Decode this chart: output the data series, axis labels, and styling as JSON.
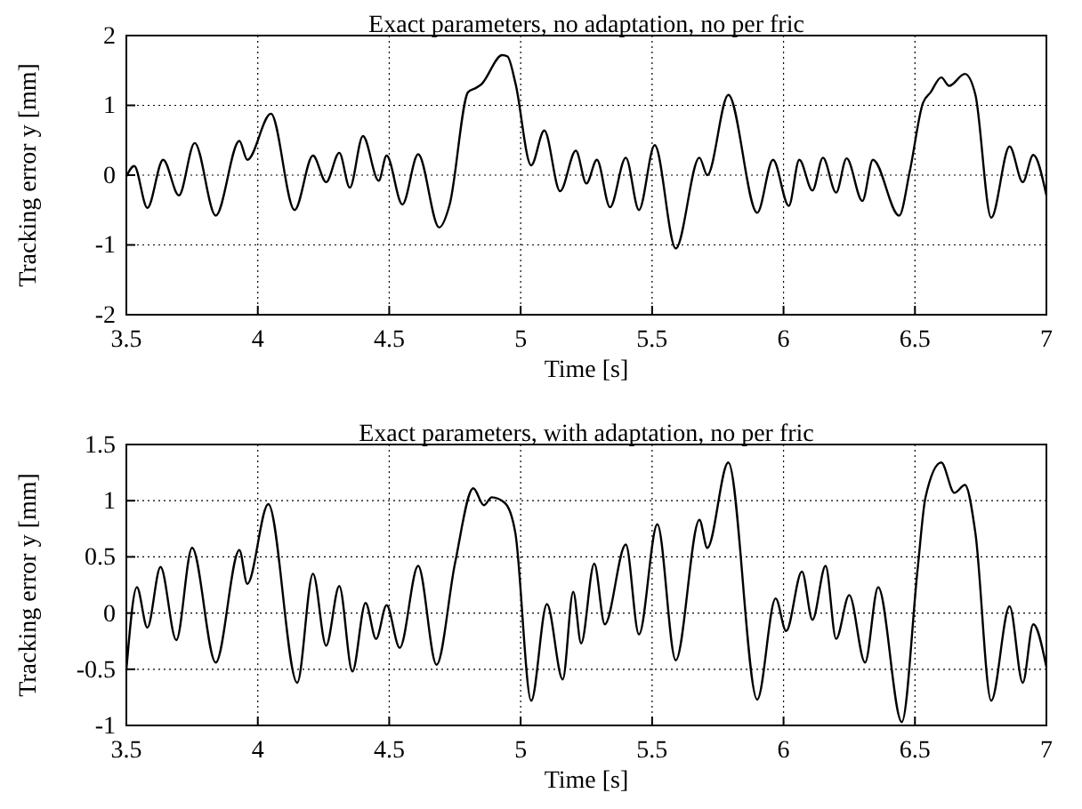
{
  "chart_data": [
    {
      "type": "line",
      "title": "Exact parameters, no adaptation, no per fric",
      "xlabel": "Time [s]",
      "ylabel": "Tracking error y [mm]",
      "xlim": [
        3.5,
        7
      ],
      "xticks": [
        3.5,
        4,
        4.5,
        5,
        5.5,
        6,
        6.5,
        7
      ],
      "ylim": [
        -2,
        2
      ],
      "yticks": [
        -2,
        -1,
        0,
        1,
        2
      ],
      "grid": true,
      "series": [
        {
          "color": "#000000",
          "x": [
            3.5,
            3.53,
            3.58,
            3.64,
            3.7,
            3.76,
            3.84,
            3.93,
            3.96,
            4.05,
            4.14,
            4.21,
            4.26,
            4.31,
            4.35,
            4.4,
            4.46,
            4.49,
            4.55,
            4.61,
            4.69,
            4.73,
            4.8,
            4.83,
            4.85,
            4.93,
            4.95,
            4.98,
            5.04,
            5.09,
            5.15,
            5.21,
            5.25,
            5.29,
            5.34,
            5.4,
            5.45,
            5.51,
            5.59,
            5.68,
            5.71,
            5.79,
            5.9,
            5.96,
            6.02,
            6.06,
            6.11,
            6.15,
            6.2,
            6.24,
            6.3,
            6.34,
            6.44,
            6.48,
            6.53,
            6.56,
            6.6,
            6.63,
            6.69,
            6.73,
            6.79,
            6.86,
            6.91,
            6.95,
            7.0
          ],
          "values": [
            -0.02,
            0.13,
            -0.47,
            0.22,
            -0.29,
            0.46,
            -0.58,
            0.49,
            0.22,
            0.88,
            -0.5,
            0.28,
            -0.1,
            0.32,
            -0.18,
            0.56,
            -0.08,
            0.28,
            -0.42,
            0.3,
            -0.75,
            -0.42,
            1.19,
            1.25,
            1.3,
            1.72,
            1.7,
            1.32,
            0.14,
            0.64,
            -0.23,
            0.35,
            -0.12,
            0.22,
            -0.46,
            0.25,
            -0.5,
            0.43,
            -1.05,
            0.25,
            0.0,
            1.15,
            -0.54,
            0.22,
            -0.44,
            0.22,
            -0.22,
            0.25,
            -0.25,
            0.24,
            -0.37,
            0.22,
            -0.58,
            0.05,
            1.03,
            1.19,
            1.4,
            1.28,
            1.45,
            1.15,
            -0.61,
            0.41,
            -0.1,
            0.29,
            -0.29
          ]
        }
      ]
    },
    {
      "type": "line",
      "title": "Exact parameters, with adaptation, no per fric",
      "xlabel": "Time [s]",
      "ylabel": "Tracking error y [mm]",
      "xlim": [
        3.5,
        7
      ],
      "xticks": [
        3.5,
        4,
        4.5,
        5,
        5.5,
        6,
        6.5,
        7
      ],
      "ylim": [
        -1,
        1.5
      ],
      "yticks": [
        -1,
        -0.5,
        0,
        0.5,
        1,
        1.5
      ],
      "grid": true,
      "series": [
        {
          "color": "#000000",
          "x": [
            3.5,
            3.54,
            3.58,
            3.63,
            3.69,
            3.75,
            3.84,
            3.93,
            3.96,
            4.04,
            4.15,
            4.21,
            4.26,
            4.31,
            4.36,
            4.41,
            4.45,
            4.49,
            4.54,
            4.61,
            4.68,
            4.75,
            4.82,
            4.86,
            4.89,
            4.94,
            4.98,
            5.04,
            5.1,
            5.16,
            5.2,
            5.23,
            5.28,
            5.32,
            5.4,
            5.45,
            5.52,
            5.59,
            5.68,
            5.71,
            5.79,
            5.9,
            5.97,
            6.01,
            6.07,
            6.11,
            6.16,
            6.2,
            6.25,
            6.31,
            6.36,
            6.45,
            6.51,
            6.54,
            6.6,
            6.65,
            6.69,
            6.73,
            6.79,
            6.86,
            6.91,
            6.95,
            7.0
          ],
          "values": [
            -0.51,
            0.23,
            -0.13,
            0.41,
            -0.24,
            0.58,
            -0.44,
            0.56,
            0.26,
            0.97,
            -0.62,
            0.35,
            -0.29,
            0.24,
            -0.52,
            0.09,
            -0.23,
            0.07,
            -0.31,
            0.42,
            -0.46,
            0.44,
            1.11,
            0.96,
            1.03,
            0.98,
            0.71,
            -0.78,
            0.08,
            -0.59,
            0.19,
            -0.27,
            0.44,
            -0.1,
            0.61,
            -0.19,
            0.79,
            -0.42,
            0.83,
            0.58,
            1.34,
            -0.77,
            0.13,
            -0.16,
            0.37,
            -0.06,
            0.42,
            -0.23,
            0.16,
            -0.44,
            0.23,
            -0.97,
            0.39,
            1.03,
            1.34,
            1.07,
            1.14,
            0.71,
            -0.78,
            0.06,
            -0.62,
            -0.1,
            -0.48
          ]
        }
      ]
    }
  ]
}
